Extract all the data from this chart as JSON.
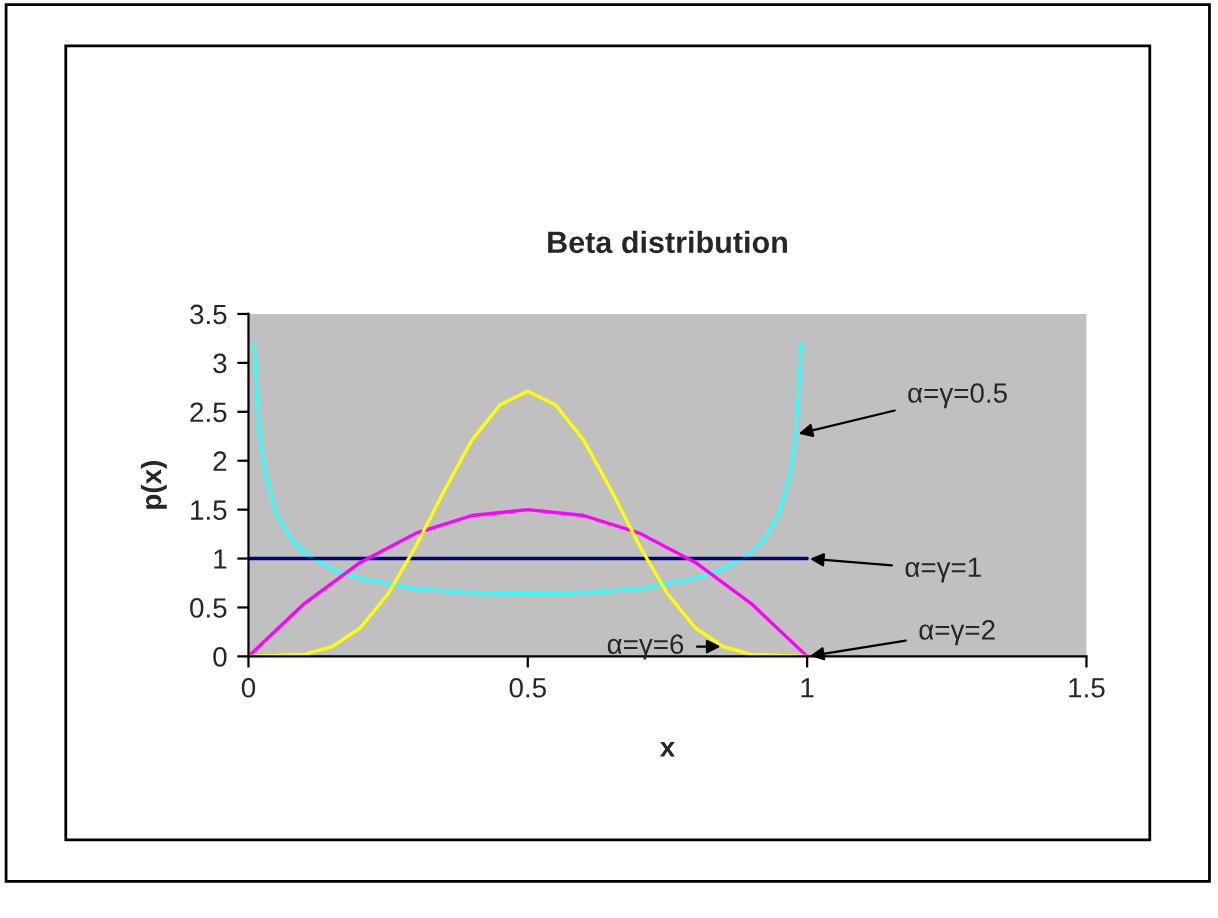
{
  "chart_data": {
    "type": "line",
    "title": "Beta distribution",
    "xlabel": "x",
    "ylabel": "p(x)",
    "series": [
      {
        "name": "α=γ=0.5",
        "color": "#33ffff",
        "x": [
          0.01,
          0.02,
          0.03,
          0.05,
          0.075,
          0.1,
          0.15,
          0.2,
          0.3,
          0.4,
          0.5,
          0.6,
          0.7,
          0.8,
          0.85,
          0.9,
          0.925,
          0.95,
          0.97,
          0.98,
          0.99
        ],
        "values": [
          3.2,
          2.27,
          1.87,
          1.46,
          1.21,
          1.06,
          0.89,
          0.8,
          0.69,
          0.65,
          0.64,
          0.65,
          0.69,
          0.8,
          0.89,
          1.06,
          1.21,
          1.46,
          1.87,
          2.27,
          3.2
        ]
      },
      {
        "name": "α=γ=1",
        "color": "#000080",
        "x": [
          0,
          1
        ],
        "values": [
          1,
          1
        ]
      },
      {
        "name": "α=γ=2",
        "color": "#ff00ff",
        "x": [
          0,
          0.1,
          0.2,
          0.3,
          0.4,
          0.5,
          0.6,
          0.7,
          0.8,
          0.9,
          1
        ],
        "values": [
          0,
          0.54,
          0.96,
          1.26,
          1.44,
          1.5,
          1.44,
          1.26,
          0.96,
          0.54,
          0
        ]
      },
      {
        "name": "α=γ=6",
        "color": "#ffff00",
        "x": [
          0,
          0.1,
          0.15,
          0.2,
          0.25,
          0.3,
          0.35,
          0.4,
          0.45,
          0.5,
          0.55,
          0.6,
          0.65,
          0.7,
          0.75,
          0.8,
          0.85,
          0.9,
          1
        ],
        "values": [
          0,
          0.02,
          0.1,
          0.29,
          0.64,
          1.13,
          1.69,
          2.21,
          2.57,
          2.71,
          2.57,
          2.21,
          1.69,
          1.13,
          0.64,
          0.29,
          0.1,
          0.02,
          0
        ]
      }
    ],
    "xlim": [
      0,
      1.5
    ],
    "xticks": [
      0,
      0.5,
      1,
      1.5
    ],
    "ylim": [
      0,
      3.5
    ],
    "yticks": [
      0,
      0.5,
      1,
      1.5,
      2,
      2.5,
      3,
      3.5
    ],
    "grid": false,
    "legend": false,
    "marker": "none",
    "line_style": "solid"
  }
}
